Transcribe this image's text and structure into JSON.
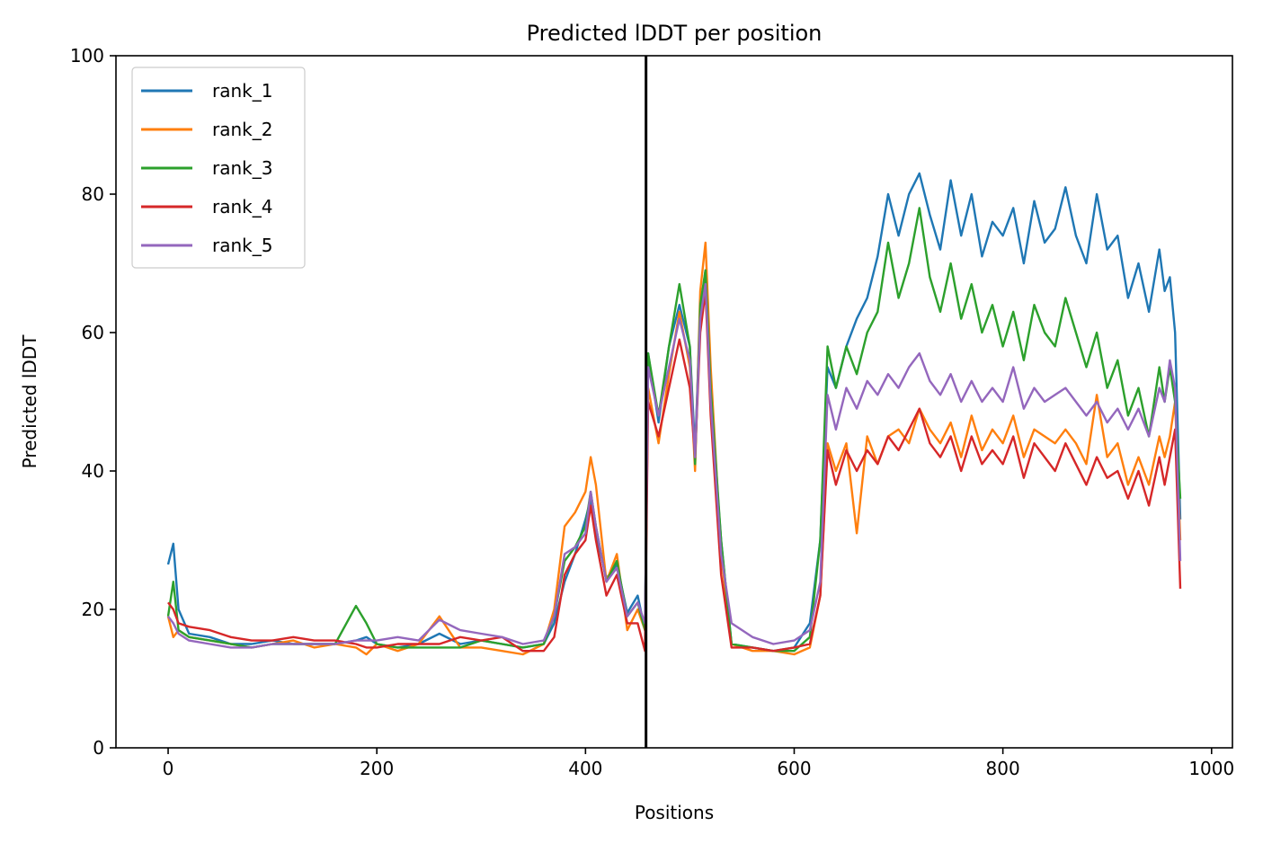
{
  "chart_data": {
    "type": "line",
    "title": "Predicted lDDT per position",
    "xlabel": "Positions",
    "ylabel": "Predicted lDDT",
    "xlim": [
      -50,
      1020
    ],
    "ylim": [
      0,
      100
    ],
    "xticks": [
      0,
      200,
      400,
      600,
      800,
      1000
    ],
    "yticks": [
      0,
      20,
      40,
      60,
      80,
      100
    ],
    "grid": false,
    "legend_position": "upper-left",
    "vline_x": 458,
    "vline_color": "#000000",
    "x": [
      0,
      5,
      10,
      20,
      40,
      60,
      80,
      100,
      120,
      140,
      160,
      180,
      190,
      200,
      220,
      240,
      260,
      280,
      300,
      320,
      340,
      360,
      370,
      380,
      390,
      400,
      405,
      410,
      420,
      430,
      440,
      450,
      457,
      460,
      470,
      480,
      490,
      500,
      505,
      510,
      515,
      520,
      530,
      540,
      560,
      580,
      600,
      615,
      625,
      632,
      640,
      650,
      660,
      670,
      680,
      690,
      700,
      710,
      720,
      730,
      740,
      750,
      760,
      770,
      780,
      790,
      800,
      810,
      820,
      830,
      840,
      850,
      860,
      870,
      880,
      890,
      900,
      910,
      920,
      930,
      940,
      950,
      955,
      960,
      965,
      970
    ],
    "series": [
      {
        "name": "rank_1",
        "color": "#1f77b4",
        "values": [
          26.5,
          29.5,
          20.0,
          16.5,
          16.0,
          15.0,
          15.0,
          15.5,
          15.0,
          15.0,
          15.0,
          15.5,
          16.0,
          15.0,
          14.5,
          15.0,
          16.5,
          15.0,
          15.5,
          15.0,
          14.5,
          15.0,
          18.0,
          24.0,
          28.0,
          33.0,
          36.0,
          31.0,
          24.5,
          26.5,
          19.5,
          22.0,
          17.0,
          57.0,
          47.0,
          58.0,
          64.0,
          58.0,
          43.0,
          63.0,
          69.0,
          50.0,
          30.0,
          15.0,
          14.5,
          14.0,
          14.5,
          18.0,
          30.0,
          55.0,
          52.0,
          58.0,
          62.0,
          65.0,
          71.0,
          80.0,
          74.0,
          80.0,
          83.0,
          77.0,
          72.0,
          82.0,
          74.0,
          80.0,
          71.0,
          76.0,
          74.0,
          78.0,
          70.0,
          79.0,
          73.0,
          75.0,
          81.0,
          74.0,
          70.0,
          80.0,
          72.0,
          74.0,
          65.0,
          70.0,
          63.0,
          72.0,
          66.0,
          68.0,
          60.0,
          33.0
        ]
      },
      {
        "name": "rank_2",
        "color": "#ff7f0e",
        "values": [
          19.0,
          16.0,
          17.0,
          16.0,
          15.5,
          15.0,
          14.5,
          15.0,
          15.5,
          14.5,
          15.0,
          14.5,
          13.5,
          15.0,
          14.0,
          15.0,
          19.0,
          14.5,
          14.5,
          14.0,
          13.5,
          15.0,
          20.0,
          32.0,
          34.0,
          37.0,
          42.0,
          38.0,
          24.0,
          28.0,
          17.0,
          20.0,
          17.0,
          52.0,
          44.0,
          54.0,
          63.0,
          55.0,
          40.0,
          66.0,
          73.0,
          55.0,
          28.0,
          15.0,
          14.0,
          14.0,
          13.5,
          14.5,
          22.0,
          44.0,
          40.0,
          44.0,
          31.0,
          45.0,
          41.0,
          45.0,
          46.0,
          44.0,
          49.0,
          46.0,
          44.0,
          47.0,
          42.0,
          48.0,
          43.0,
          46.0,
          44.0,
          48.0,
          42.0,
          46.0,
          45.0,
          44.0,
          46.0,
          44.0,
          41.0,
          51.0,
          42.0,
          44.0,
          38.0,
          42.0,
          38.0,
          45.0,
          42.0,
          45.0,
          50.0,
          30.0
        ]
      },
      {
        "name": "rank_3",
        "color": "#2ca02c",
        "values": [
          19.0,
          24.0,
          17.0,
          16.0,
          15.5,
          15.0,
          14.5,
          15.0,
          15.0,
          15.0,
          15.0,
          20.5,
          18.0,
          15.0,
          14.5,
          14.5,
          14.5,
          14.5,
          15.5,
          15.0,
          14.5,
          15.0,
          19.0,
          27.0,
          29.0,
          32.0,
          37.0,
          32.0,
          24.0,
          27.0,
          19.0,
          21.0,
          17.0,
          57.0,
          48.0,
          58.0,
          67.0,
          58.0,
          41.0,
          64.0,
          69.0,
          52.0,
          30.0,
          15.0,
          14.5,
          14.0,
          14.0,
          16.0,
          30.0,
          58.0,
          52.0,
          58.0,
          54.0,
          60.0,
          63.0,
          73.0,
          65.0,
          70.0,
          78.0,
          68.0,
          63.0,
          70.0,
          62.0,
          67.0,
          60.0,
          64.0,
          58.0,
          63.0,
          56.0,
          64.0,
          60.0,
          58.0,
          65.0,
          60.0,
          55.0,
          60.0,
          52.0,
          56.0,
          48.0,
          52.0,
          45.0,
          55.0,
          50.0,
          55.0,
          50.0,
          36.0
        ]
      },
      {
        "name": "rank_4",
        "color": "#d62728",
        "values": [
          21.0,
          20.0,
          18.0,
          17.5,
          17.0,
          16.0,
          15.5,
          15.5,
          16.0,
          15.5,
          15.5,
          15.0,
          14.5,
          14.5,
          15.0,
          15.0,
          15.0,
          16.0,
          15.5,
          16.0,
          14.0,
          14.0,
          16.0,
          25.0,
          28.0,
          30.0,
          35.0,
          30.0,
          22.0,
          25.0,
          18.0,
          18.0,
          14.0,
          50.0,
          45.0,
          52.0,
          59.0,
          52.0,
          42.0,
          60.0,
          66.0,
          48.0,
          25.0,
          14.5,
          14.5,
          14.0,
          14.5,
          15.0,
          22.0,
          43.0,
          38.0,
          43.0,
          40.0,
          43.0,
          41.0,
          45.0,
          43.0,
          46.0,
          49.0,
          44.0,
          42.0,
          45.0,
          40.0,
          45.0,
          41.0,
          43.0,
          41.0,
          45.0,
          39.0,
          44.0,
          42.0,
          40.0,
          44.0,
          41.0,
          38.0,
          42.0,
          39.0,
          40.0,
          36.0,
          40.0,
          35.0,
          42.0,
          38.0,
          42.0,
          46.0,
          23.0
        ]
      },
      {
        "name": "rank_5",
        "color": "#9467bd",
        "values": [
          19.0,
          18.0,
          16.5,
          15.5,
          15.0,
          14.5,
          14.5,
          15.0,
          15.0,
          15.0,
          15.0,
          15.5,
          15.5,
          15.5,
          16.0,
          15.5,
          18.5,
          17.0,
          16.5,
          16.0,
          15.0,
          15.5,
          19.0,
          28.0,
          29.0,
          31.0,
          37.0,
          32.0,
          24.0,
          26.0,
          19.0,
          21.0,
          18.0,
          55.0,
          48.0,
          55.0,
          62.0,
          56.0,
          42.0,
          62.0,
          67.0,
          50.0,
          28.0,
          18.0,
          16.0,
          15.0,
          15.5,
          17.0,
          24.0,
          51.0,
          46.0,
          52.0,
          49.0,
          53.0,
          51.0,
          54.0,
          52.0,
          55.0,
          57.0,
          53.0,
          51.0,
          54.0,
          50.0,
          53.0,
          50.0,
          52.0,
          50.0,
          55.0,
          49.0,
          52.0,
          50.0,
          51.0,
          52.0,
          50.0,
          48.0,
          50.0,
          47.0,
          49.0,
          46.0,
          49.0,
          45.0,
          52.0,
          50.0,
          56.0,
          52.0,
          27.0
        ]
      }
    ]
  }
}
